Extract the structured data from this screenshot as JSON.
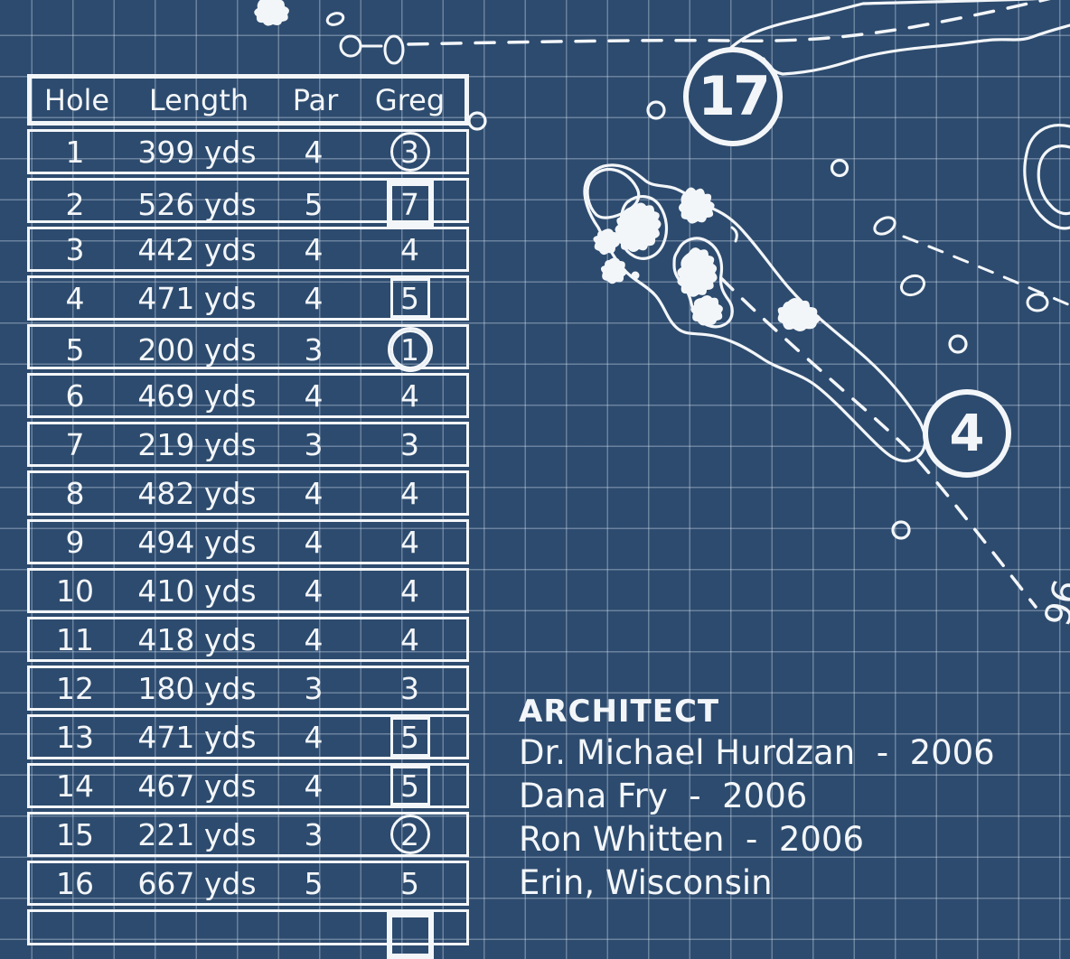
{
  "colors": {
    "background": "#2d4b6e",
    "grid_line": "#cedeec",
    "linework": "#f3f6f9",
    "text": "#f3f6f9"
  },
  "scorecard": {
    "headers": [
      "Hole",
      "Length",
      "Par",
      "Greg"
    ],
    "rows": [
      {
        "hole": "1",
        "length": "399 yds",
        "par": "4",
        "score": "3",
        "marker": "circle"
      },
      {
        "hole": "2",
        "length": "526 yds",
        "par": "5",
        "score": "7",
        "marker": "double-box"
      },
      {
        "hole": "3",
        "length": "442 yds",
        "par": "4",
        "score": "4",
        "marker": "none"
      },
      {
        "hole": "4",
        "length": "471 yds",
        "par": "4",
        "score": "5",
        "marker": "box"
      },
      {
        "hole": "5",
        "length": "200 yds",
        "par": "3",
        "score": "1",
        "marker": "double-circle"
      },
      {
        "hole": "6",
        "length": "469 yds",
        "par": "4",
        "score": "4",
        "marker": "none"
      },
      {
        "hole": "7",
        "length": "219 yds",
        "par": "3",
        "score": "3",
        "marker": "none"
      },
      {
        "hole": "8",
        "length": "482 yds",
        "par": "4",
        "score": "4",
        "marker": "none"
      },
      {
        "hole": "9",
        "length": "494 yds",
        "par": "4",
        "score": "4",
        "marker": "none"
      },
      {
        "hole": "10",
        "length": "410 yds",
        "par": "4",
        "score": "4",
        "marker": "none"
      },
      {
        "hole": "11",
        "length": "418 yds",
        "par": "4",
        "score": "4",
        "marker": "none"
      },
      {
        "hole": "12",
        "length": "180 yds",
        "par": "3",
        "score": "3",
        "marker": "none"
      },
      {
        "hole": "13",
        "length": "471 yds",
        "par": "4",
        "score": "5",
        "marker": "box"
      },
      {
        "hole": "14",
        "length": "467 yds",
        "par": "4",
        "score": "5",
        "marker": "box"
      },
      {
        "hole": "15",
        "length": "221 yds",
        "par": "3",
        "score": "2",
        "marker": "circle"
      },
      {
        "hole": "16",
        "length": "667 yds",
        "par": "5",
        "score": "5",
        "marker": "none"
      }
    ],
    "partial_row": {
      "hole": "",
      "length": "",
      "par": "",
      "score": "",
      "marker": "double-box"
    }
  },
  "map": {
    "hole_badges": [
      {
        "label": "17"
      },
      {
        "label": "4"
      }
    ],
    "yardage_label": "96"
  },
  "architect": {
    "heading": "ARCHITECT",
    "lines": [
      "Dr. Michael Hurdzan  -  2006",
      "Dana Fry  -  2006",
      "Ron Whitten  -  2006",
      "Erin, Wisconsin"
    ]
  }
}
